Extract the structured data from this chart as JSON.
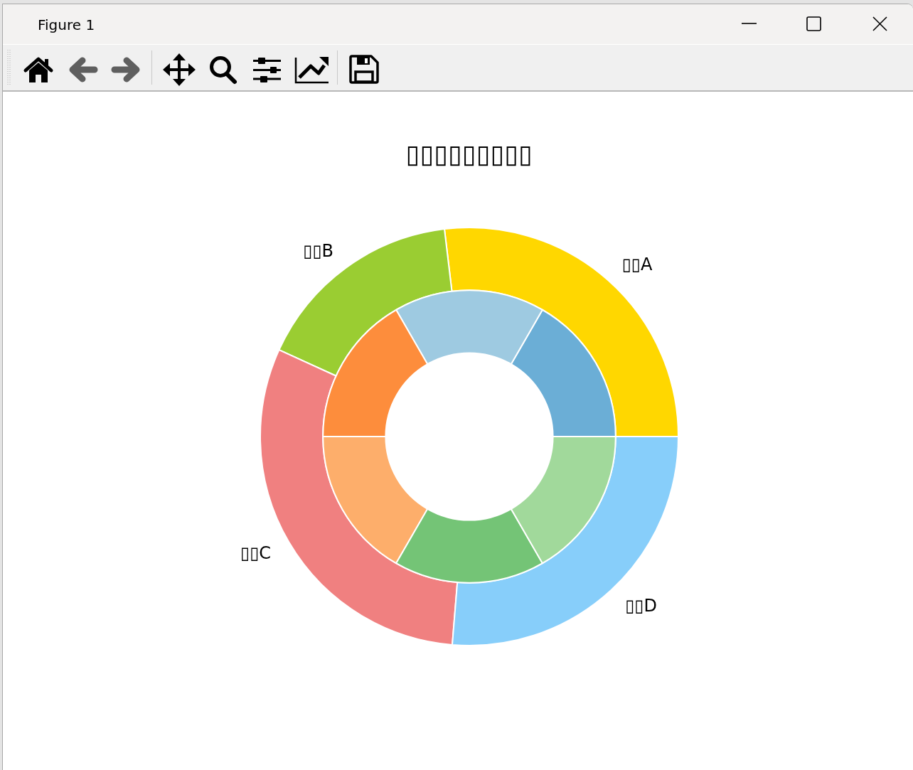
{
  "chart_data": [
    {
      "type": "donut",
      "title": "▯▯▯▯▯▯▯▯▯",
      "annotations": [
        "Figure 1"
      ],
      "categories": [
        "▯▯A",
        "▯▯B",
        "▯▯C",
        "▯▯D"
      ],
      "values": [
        26.9,
        16.3,
        30.5,
        26.3
      ],
      "colors": [
        "#ffd700",
        "#9acd32",
        "#f08080",
        "#87cefa"
      ]
    },
    {
      "type": "donut",
      "categories": [
        null,
        null,
        null,
        null,
        null,
        null
      ],
      "values": [
        16.67,
        16.67,
        16.67,
        16.67,
        16.67,
        16.67
      ],
      "colors": [
        "#6baed6",
        "#9ecae1",
        "#fd8d3c",
        "#fdae6b",
        "#74c476",
        "#a1d99b"
      ]
    }
  ]
}
